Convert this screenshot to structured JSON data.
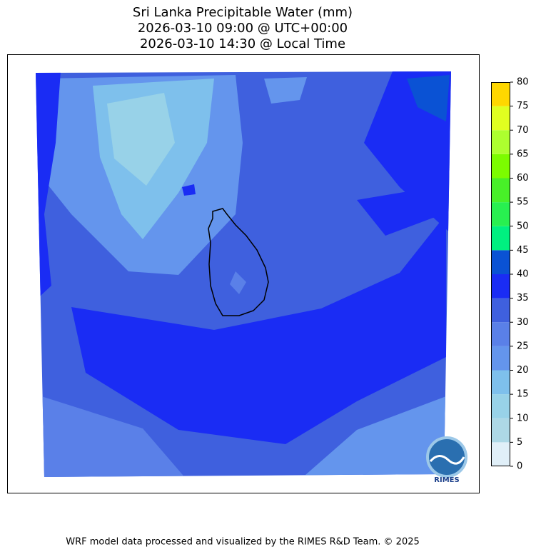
{
  "title": [
    "Sri Lanka Precipitable Water (mm)",
    "2026-03-10 09:00 @ UTC+00:00",
    "2026-03-10 14:30 @ Local Time"
  ],
  "colorbar": {
    "levels": [
      0,
      5,
      10,
      15,
      20,
      25,
      30,
      35,
      40,
      45,
      50,
      55,
      60,
      65,
      70,
      75,
      80
    ],
    "colors": [
      "#e0eff8",
      "#add8e6",
      "#98d2e8",
      "#7ec0ec",
      "#6495ed",
      "#5a80e8",
      "#3f60de",
      "#1a2cf4",
      "#0a52d4",
      "#00f080",
      "#28f050",
      "#48f028",
      "#7cfc00",
      "#adff2f",
      "#e0ff20",
      "#ffd700"
    ]
  },
  "logo": "RIMES",
  "footer": "WRF model data processed and visualized by the RIMES R&D Team. © 2025"
}
